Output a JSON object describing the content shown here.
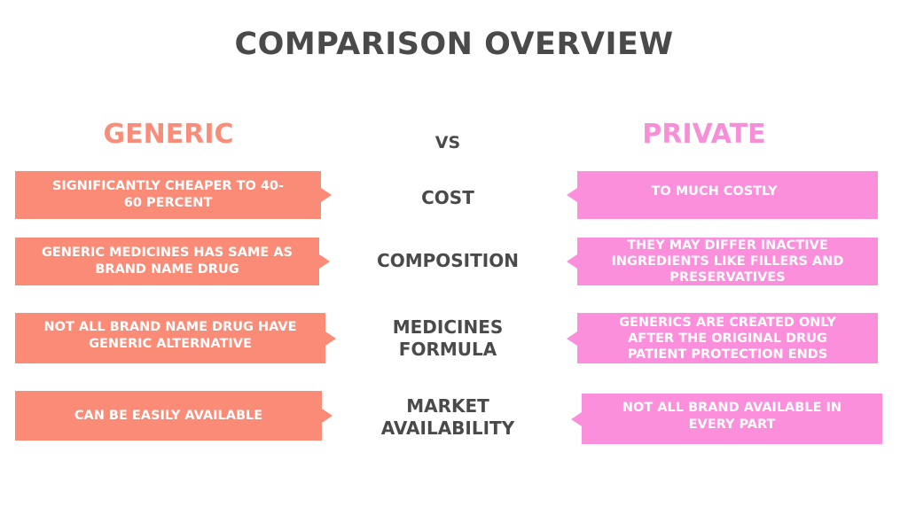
{
  "title": "COMPARISON OVERVIEW",
  "left_heading": "GENERIC",
  "vs_label": "VS",
  "right_heading": "PRIVATE",
  "rows": [
    {
      "criterion": "COST",
      "generic": "SIGNIFICANTLY CHEAPER TO 40-60 PERCENT",
      "private": "TO MUCH COSTLY"
    },
    {
      "criterion": "COMPOSITION",
      "generic": "GENERIC MEDICINES HAS SAME AS BRAND NAME DRUG",
      "private": "THEY MAY DIFFER INACTIVE INGREDIENTS LIKE FILLERS AND PRESERVATIVES"
    },
    {
      "criterion": "MEDICINES FORMULA",
      "generic": "NOT ALL BRAND NAME DRUG HAVE GENERIC ALTERNATIVE",
      "private": "GENERICS ARE CREATED ONLY AFTER THE ORIGINAL DRUG PATIENT PROTECTION ENDS"
    },
    {
      "criterion": "MARKET AVAILABILITY",
      "generic": "CAN BE EASILY AVAILABLE",
      "private": "NOT ALL BRAND AVAILABLE IN EVERY PART"
    }
  ],
  "colors": {
    "generic": "#fa8b77",
    "private": "#fb8fdb",
    "text_dark": "#4a4a4a"
  }
}
